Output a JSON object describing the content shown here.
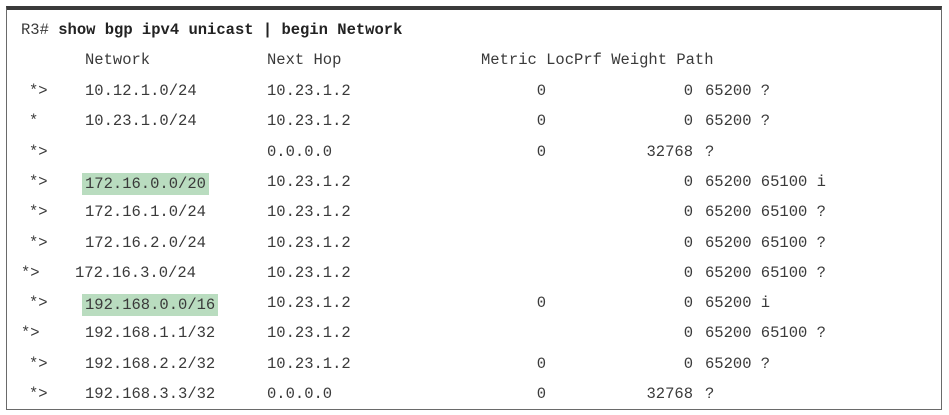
{
  "command": {
    "prompt": "R3#",
    "text": "show bgp ipv4 unicast | begin Network"
  },
  "headers": {
    "network": "Network",
    "next_hop": "Next Hop",
    "metric_locprf_weight_path": "Metric LocPrf Weight Path"
  },
  "rows": [
    {
      "status": "*>",
      "network": "10.12.1.0/24",
      "next_hop": "10.23.1.2",
      "metric": "0",
      "weight": "0",
      "path": "65200 ?",
      "highlight": false
    },
    {
      "status": "*",
      "network": "10.23.1.0/24",
      "next_hop": "10.23.1.2",
      "metric": "0",
      "weight": "0",
      "path": "65200 ?",
      "highlight": false
    },
    {
      "status": "*>",
      "network": "",
      "next_hop": "0.0.0.0",
      "metric": "0",
      "weight": "32768",
      "path": "?",
      "highlight": false
    },
    {
      "status": "*>",
      "network": "172.16.0.0/20",
      "next_hop": "10.23.1.2",
      "metric": "",
      "weight": "0",
      "path": "65200 65100 i",
      "highlight": true
    },
    {
      "status": "*>",
      "network": "172.16.1.0/24",
      "next_hop": "10.23.1.2",
      "metric": "",
      "weight": "0",
      "path": "65200 65100 ?",
      "highlight": false
    },
    {
      "status": "*>",
      "network": "172.16.2.0/24",
      "next_hop": "10.23.1.2",
      "metric": "",
      "weight": "0",
      "path": "65200 65100 ?",
      "highlight": false
    },
    {
      "status": "*>",
      "network": "172.16.3.0/24",
      "next_hop": "10.23.1.2",
      "metric": "",
      "weight": "0",
      "path": "65200 65100 ?",
      "highlight": false
    },
    {
      "status": "*>",
      "network": "192.168.0.0/16",
      "next_hop": "10.23.1.2",
      "metric": "0",
      "weight": "0",
      "path": "65200 i",
      "highlight": true
    },
    {
      "status": "*>",
      "network": "192.168.1.1/32",
      "next_hop": "10.23.1.2",
      "metric": "",
      "weight": "0",
      "path": "65200 65100 ?",
      "highlight": false
    },
    {
      "status": "*>",
      "network": "192.168.2.2/32",
      "next_hop": "10.23.1.2",
      "metric": "0",
      "weight": "0",
      "path": "65200 ?",
      "highlight": false
    },
    {
      "status": "*>",
      "network": "192.168.3.3/32",
      "next_hop": "0.0.0.0",
      "metric": "0",
      "weight": "32768",
      "path": "?",
      "highlight": false
    }
  ]
}
